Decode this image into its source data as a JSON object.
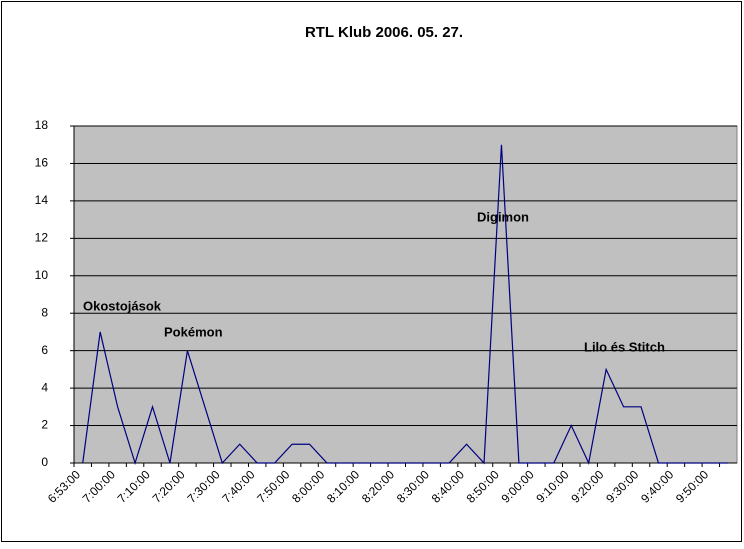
{
  "chart_data": {
    "type": "line",
    "title": "RTL Klub 2006. 05. 27.",
    "categories": [
      "6:53:00",
      null,
      "7:00:00",
      null,
      "7:10:00",
      null,
      "7:20:00",
      null,
      "7:30:00",
      null,
      "7:40:00",
      null,
      "7:50:00",
      null,
      "8:00:00",
      null,
      "8:10:00",
      null,
      "8:20:00",
      null,
      "8:30:00",
      null,
      "8:40:00",
      null,
      "8:50:00",
      null,
      "9:00:00",
      null,
      "9:10:00",
      null,
      "9:20:00",
      null,
      "9:30:00",
      null,
      "9:40:00",
      null,
      "9:50:00",
      null
    ],
    "series": [
      {
        "color": "#000080",
        "values": [
          0,
          7,
          3,
          0,
          3,
          0,
          6,
          3,
          0,
          1,
          0,
          0,
          1,
          1,
          0,
          0,
          0,
          0,
          0,
          0,
          0,
          0,
          1,
          0,
          17,
          0,
          0,
          0,
          2,
          0,
          5,
          3,
          3,
          0,
          0,
          0,
          0,
          0
        ]
      }
    ],
    "ylim": [
      0,
      18
    ],
    "yticks": [
      0,
      2,
      4,
      6,
      8,
      10,
      12,
      14,
      16,
      18
    ],
    "grid": true,
    "annotations": [
      "Okostojások",
      "Pokémon",
      "Digimon",
      "Lilo és Stitch"
    ]
  }
}
